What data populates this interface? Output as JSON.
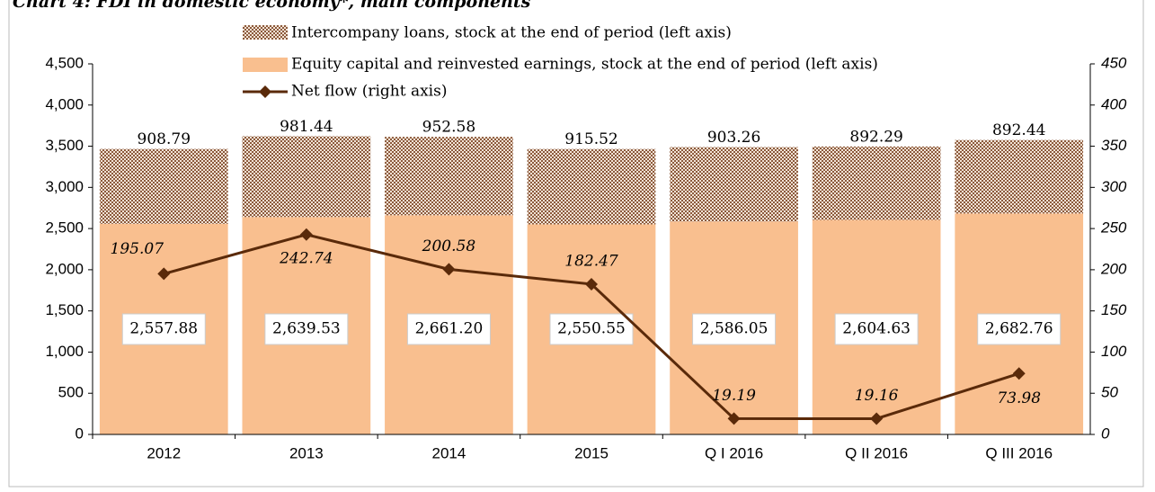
{
  "chart_data": {
    "type": "bar_line",
    "title": "Chart 4: FDI in domestic economy*, main components",
    "categories": [
      "2012",
      "2013",
      "2014",
      "2015",
      "Q I 2016",
      "Q II 2016",
      "Q III 2016"
    ],
    "series": [
      {
        "name": "Intercompany loans, stock at the end of period (left axis)",
        "color": "#8b5a3c",
        "values": [
          908.79,
          981.44,
          952.58,
          915.52,
          903.26,
          892.29,
          892.44
        ]
      },
      {
        "name": "Equity capital and reinvested earnings, stock at the end of period (left axis)",
        "color": "#f9bf8f",
        "values": [
          2557.88,
          2639.53,
          2661.2,
          2550.55,
          2586.05,
          2604.63,
          2682.76
        ],
        "value_labels": [
          "2,557.88",
          "2,639.53",
          "2,661.20",
          "2,550.55",
          "2,586.05",
          "2,604.63",
          "2,682.76"
        ]
      },
      {
        "name": "Net flow (right axis)",
        "color": "#5a2a0a",
        "axis": "y2",
        "values": [
          195.07,
          242.74,
          200.58,
          182.47,
          19.19,
          19.16,
          73.98
        ]
      }
    ],
    "ylim": [
      0,
      4500
    ],
    "yticks": [
      0,
      500,
      {
        "value": 1000,
        "label": "1,000"
      },
      {
        "value": 1500,
        "label": "1,500"
      },
      {
        "value": 2000,
        "label": "2,000"
      },
      {
        "value": 2500,
        "label": "2,500"
      },
      {
        "value": 3000,
        "label": "3,000"
      },
      {
        "value": 3500,
        "label": "3,500"
      },
      {
        "value": 4000,
        "label": "4,000"
      },
      {
        "value": 4500,
        "label": "4,500"
      }
    ],
    "y2lim": [
      0,
      450
    ],
    "y2ticks": [
      0,
      50,
      100,
      150,
      200,
      250,
      300,
      350,
      400,
      450
    ],
    "legend": "top"
  }
}
